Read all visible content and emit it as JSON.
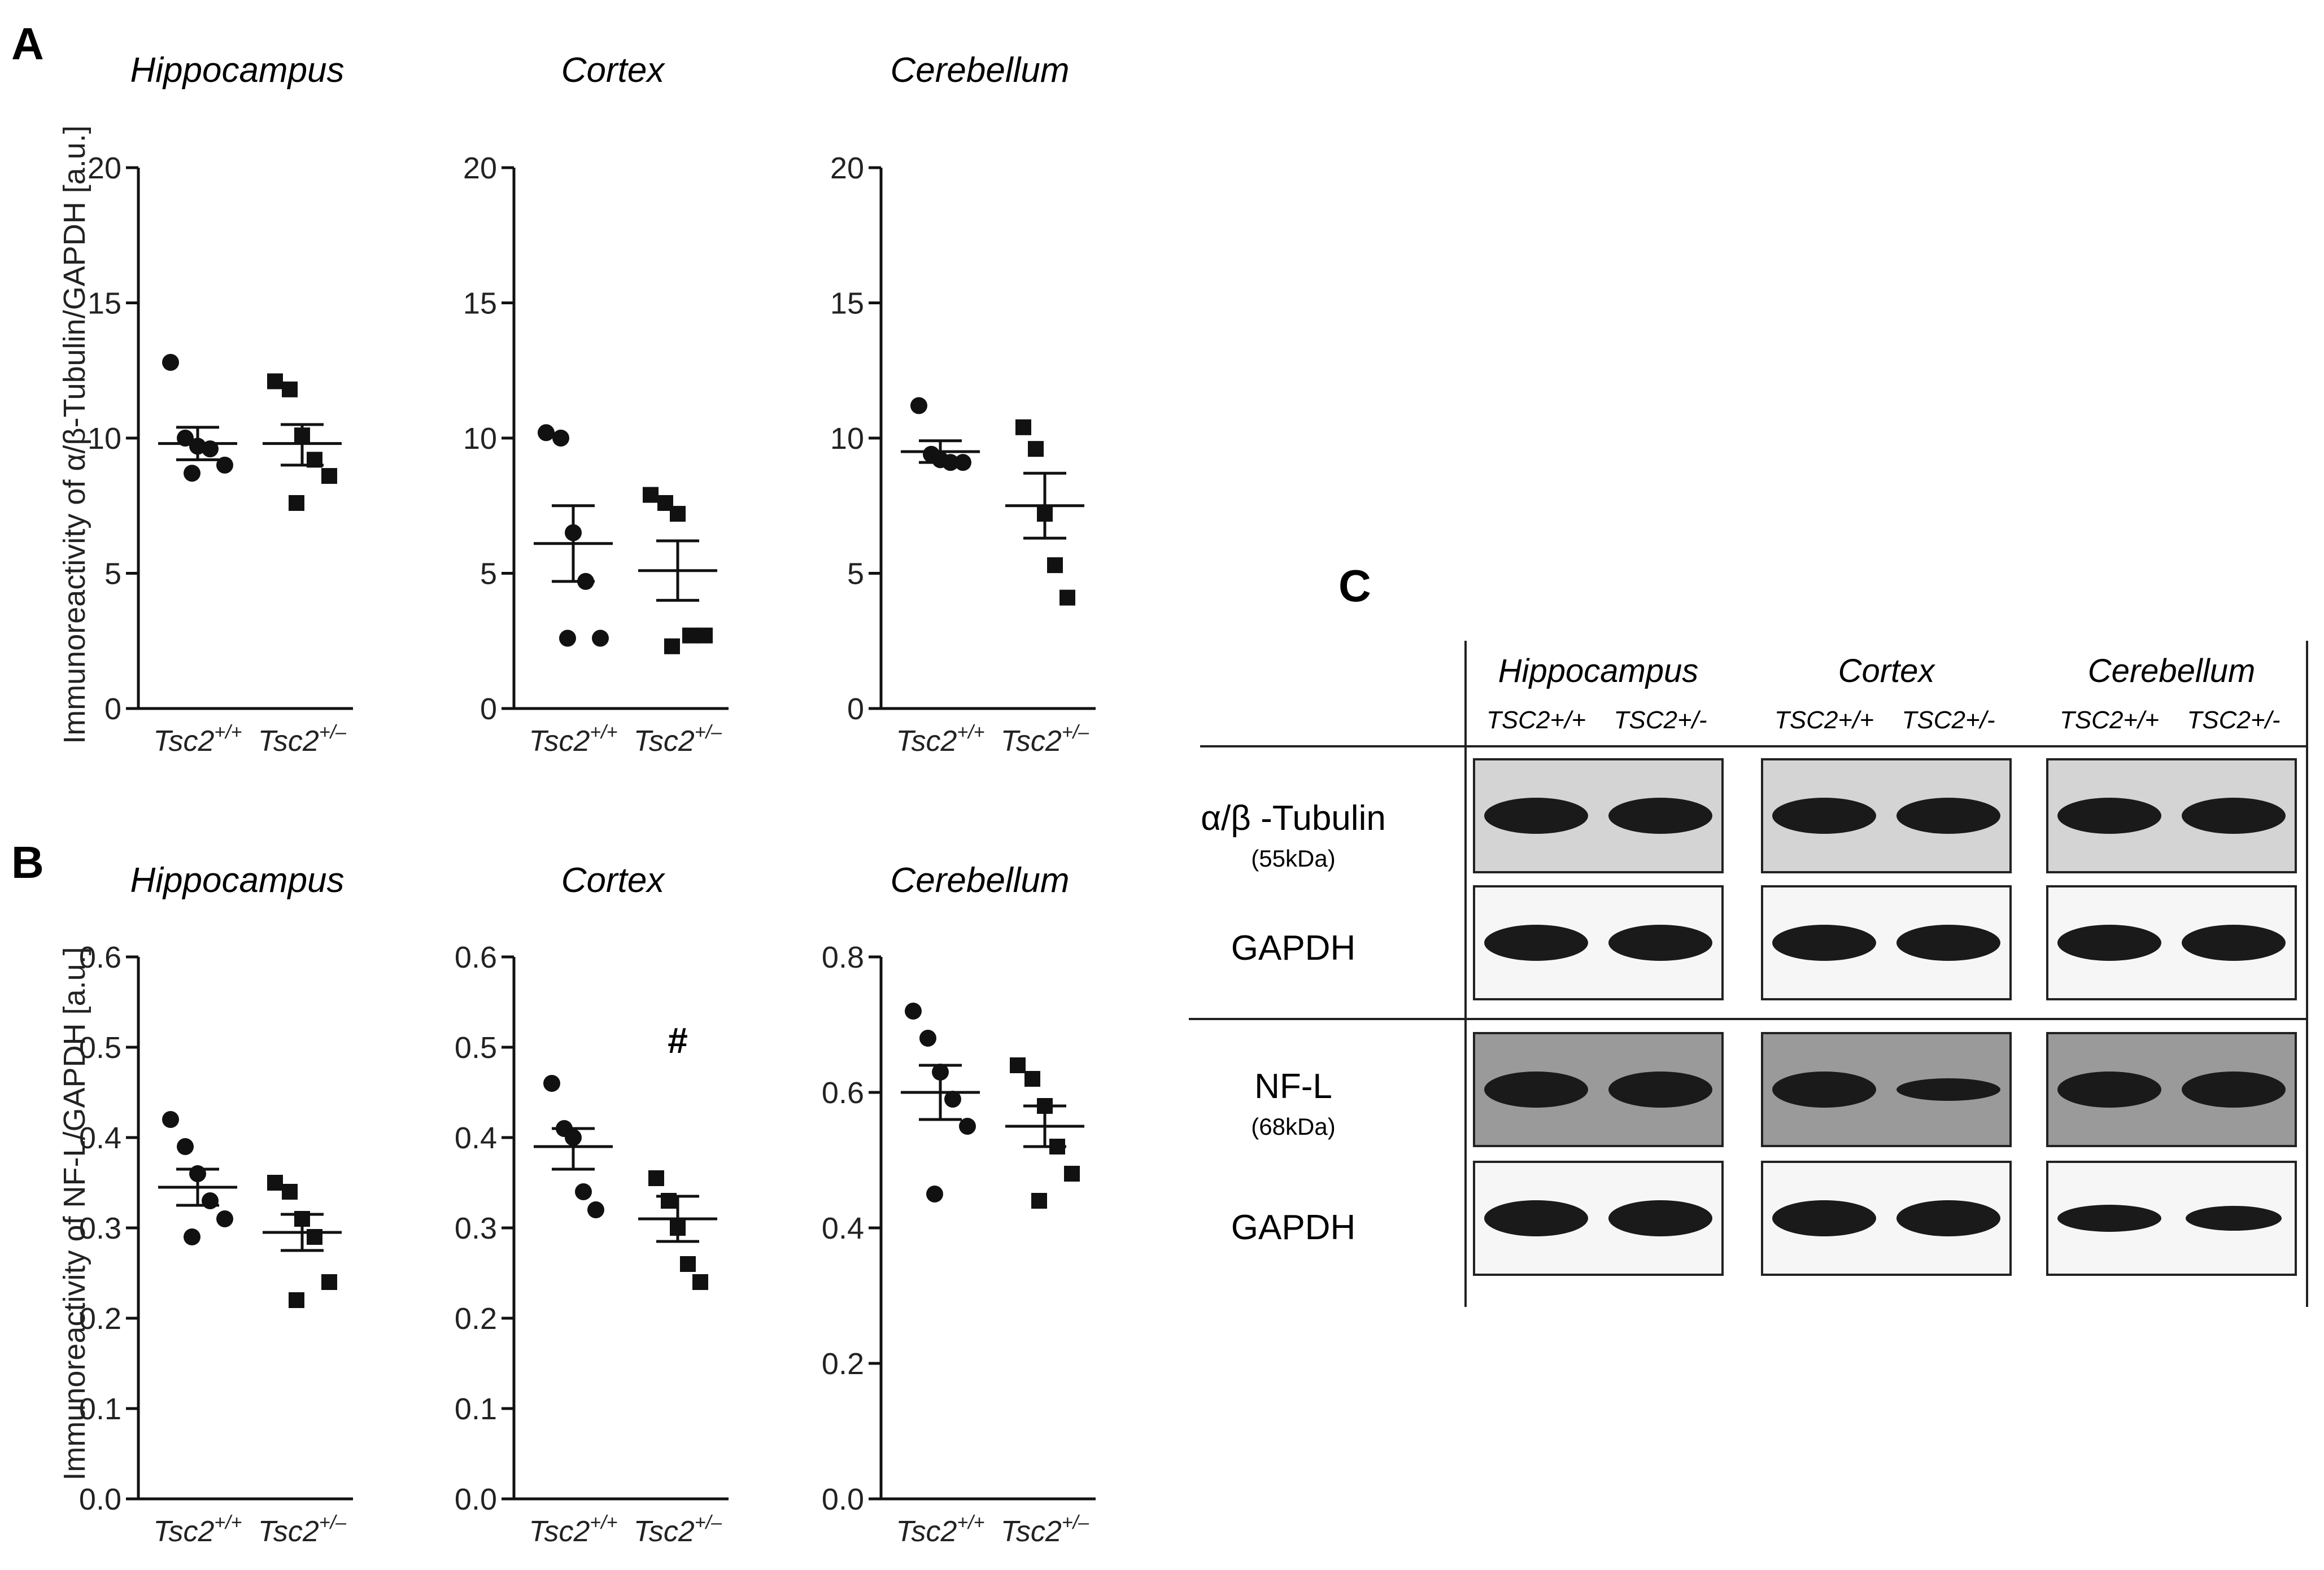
{
  "panel_letters": {
    "A": "A",
    "B": "B",
    "C": "C"
  },
  "regions": [
    "Hippocampus",
    "Cortex",
    "Cerebellum"
  ],
  "genotype_base": "Tsc2",
  "genotype_sups": [
    "+/+",
    "+/–"
  ],
  "y_labels": {
    "A": "Immunoreactivity of α/β-Tubulin/GAPDH [a.u.]",
    "B": "Immunoreactivity of NF-L/GAPDH [a.u.]"
  },
  "chart_data": [
    {
      "panel": "A",
      "type": "scatter",
      "title": "Hippocampus",
      "categories": [
        "Tsc2+/+",
        "Tsc2+/–"
      ],
      "ylim": [
        0,
        20
      ],
      "yticks": [
        0,
        5,
        10,
        15,
        20
      ],
      "series": [
        {
          "category": "Tsc2+/+",
          "marker": "circle",
          "points": [
            12.8,
            10.0,
            9.7,
            9.6,
            9.0,
            8.7
          ],
          "mean": 9.8,
          "sem_low": 9.2,
          "sem_high": 10.4
        },
        {
          "category": "Tsc2+/–",
          "marker": "square",
          "points": [
            12.1,
            11.8,
            10.1,
            9.2,
            8.6,
            7.6
          ],
          "mean": 9.8,
          "sem_low": 9.0,
          "sem_high": 10.5
        }
      ]
    },
    {
      "panel": "A",
      "type": "scatter",
      "title": "Cortex",
      "categories": [
        "Tsc2+/+",
        "Tsc2+/–"
      ],
      "ylim": [
        0,
        20
      ],
      "yticks": [
        0,
        5,
        10,
        15,
        20
      ],
      "series": [
        {
          "category": "Tsc2+/+",
          "marker": "circle",
          "points": [
            10.2,
            10.0,
            6.5,
            4.7,
            2.6,
            2.6
          ],
          "mean": 6.1,
          "sem_low": 4.7,
          "sem_high": 7.5
        },
        {
          "category": "Tsc2+/–",
          "marker": "square",
          "points": [
            7.9,
            7.6,
            7.2,
            2.7,
            2.7,
            2.3
          ],
          "mean": 5.1,
          "sem_low": 4.0,
          "sem_high": 6.2
        }
      ]
    },
    {
      "panel": "A",
      "type": "scatter",
      "title": "Cerebellum",
      "categories": [
        "Tsc2+/+",
        "Tsc2+/–"
      ],
      "ylim": [
        0,
        20
      ],
      "yticks": [
        0,
        5,
        10,
        15,
        20
      ],
      "series": [
        {
          "category": "Tsc2+/+",
          "marker": "circle",
          "points": [
            11.2,
            9.4,
            9.2,
            9.1,
            9.1
          ],
          "mean": 9.5,
          "sem_low": 9.1,
          "sem_high": 9.9
        },
        {
          "category": "Tsc2+/–",
          "marker": "square",
          "points": [
            10.4,
            9.6,
            7.2,
            5.3,
            4.1
          ],
          "mean": 7.5,
          "sem_low": 6.3,
          "sem_high": 8.7
        }
      ]
    },
    {
      "panel": "B",
      "type": "scatter",
      "title": "Hippocampus",
      "categories": [
        "Tsc2+/+",
        "Tsc2+/–"
      ],
      "ylim": [
        0,
        0.6
      ],
      "yticks": [
        0.0,
        0.1,
        0.2,
        0.3,
        0.4,
        0.5,
        0.6
      ],
      "series": [
        {
          "category": "Tsc2+/+",
          "marker": "circle",
          "points": [
            0.42,
            0.39,
            0.36,
            0.33,
            0.31,
            0.29
          ],
          "mean": 0.345,
          "sem_low": 0.325,
          "sem_high": 0.365
        },
        {
          "category": "Tsc2+/–",
          "marker": "square",
          "points": [
            0.35,
            0.34,
            0.31,
            0.29,
            0.24,
            0.22
          ],
          "mean": 0.295,
          "sem_low": 0.275,
          "sem_high": 0.315
        }
      ]
    },
    {
      "panel": "B",
      "type": "scatter",
      "title": "Cortex",
      "categories": [
        "Tsc2+/+",
        "Tsc2+/–"
      ],
      "ylim": [
        0,
        0.6
      ],
      "yticks": [
        0.0,
        0.1,
        0.2,
        0.3,
        0.4,
        0.5,
        0.6
      ],
      "annotation": "#",
      "series": [
        {
          "category": "Tsc2+/+",
          "marker": "circle",
          "points": [
            0.46,
            0.41,
            0.4,
            0.34,
            0.32
          ],
          "mean": 0.39,
          "sem_low": 0.365,
          "sem_high": 0.41
        },
        {
          "category": "Tsc2+/–",
          "marker": "square",
          "points": [
            0.355,
            0.33,
            0.3,
            0.26,
            0.24
          ],
          "mean": 0.31,
          "sem_low": 0.285,
          "sem_high": 0.335
        }
      ]
    },
    {
      "panel": "B",
      "type": "scatter",
      "title": "Cerebellum",
      "categories": [
        "Tsc2+/+",
        "Tsc2+/–"
      ],
      "ylim": [
        0,
        0.8
      ],
      "yticks": [
        0.0,
        0.2,
        0.4,
        0.6,
        0.8
      ],
      "series": [
        {
          "category": "Tsc2+/+",
          "marker": "circle",
          "points": [
            0.72,
            0.68,
            0.63,
            0.59,
            0.55,
            0.45
          ],
          "mean": 0.6,
          "sem_low": 0.56,
          "sem_high": 0.64
        },
        {
          "category": "Tsc2+/–",
          "marker": "square",
          "points": [
            0.64,
            0.62,
            0.58,
            0.52,
            0.48,
            0.44
          ],
          "mean": 0.55,
          "sem_low": 0.52,
          "sem_high": 0.58
        }
      ]
    }
  ],
  "blot": {
    "lane_labels": [
      "TSC2+/+",
      "TSC2+/-"
    ],
    "rows": [
      {
        "label": "α/β -Tubulin",
        "sublabel": "(55kDa)"
      },
      {
        "label": "GAPDH",
        "sublabel": ""
      },
      {
        "label": "NF-L",
        "sublabel": "(68kDa)"
      },
      {
        "label": "GAPDH",
        "sublabel": ""
      }
    ]
  }
}
